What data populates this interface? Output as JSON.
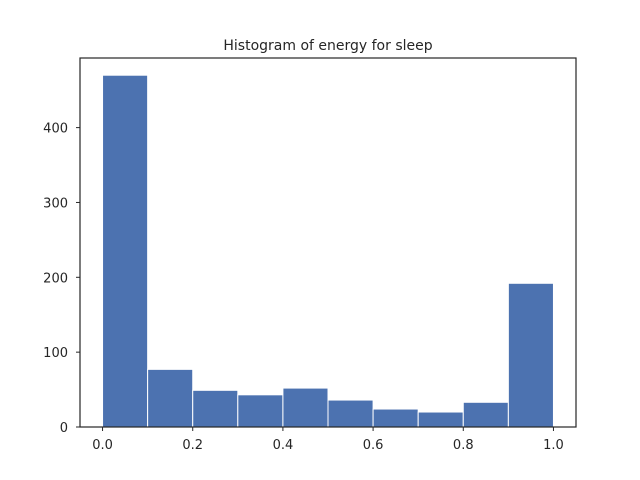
{
  "chart_data": {
    "type": "bar",
    "title": "Histogram of energy for sleep",
    "xlabel": "",
    "ylabel": "",
    "bin_edges": [
      0.0,
      0.1,
      0.2,
      0.3,
      0.4,
      0.5,
      0.6,
      0.7,
      0.8,
      0.9,
      1.0
    ],
    "values": [
      470,
      77,
      49,
      43,
      52,
      36,
      24,
      20,
      33,
      192
    ],
    "xlim": [
      -0.05,
      1.05
    ],
    "ylim": [
      0,
      493
    ],
    "xticks": [
      0.0,
      0.2,
      0.4,
      0.6,
      0.8,
      1.0
    ],
    "xtick_labels": [
      "0.0",
      "0.2",
      "0.4",
      "0.6",
      "0.8",
      "1.0"
    ],
    "yticks": [
      0,
      100,
      200,
      300,
      400
    ],
    "ytick_labels": [
      "0",
      "100",
      "200",
      "300",
      "400"
    ],
    "bar_color": "#4c72b0",
    "grid": false,
    "legend": "none"
  }
}
